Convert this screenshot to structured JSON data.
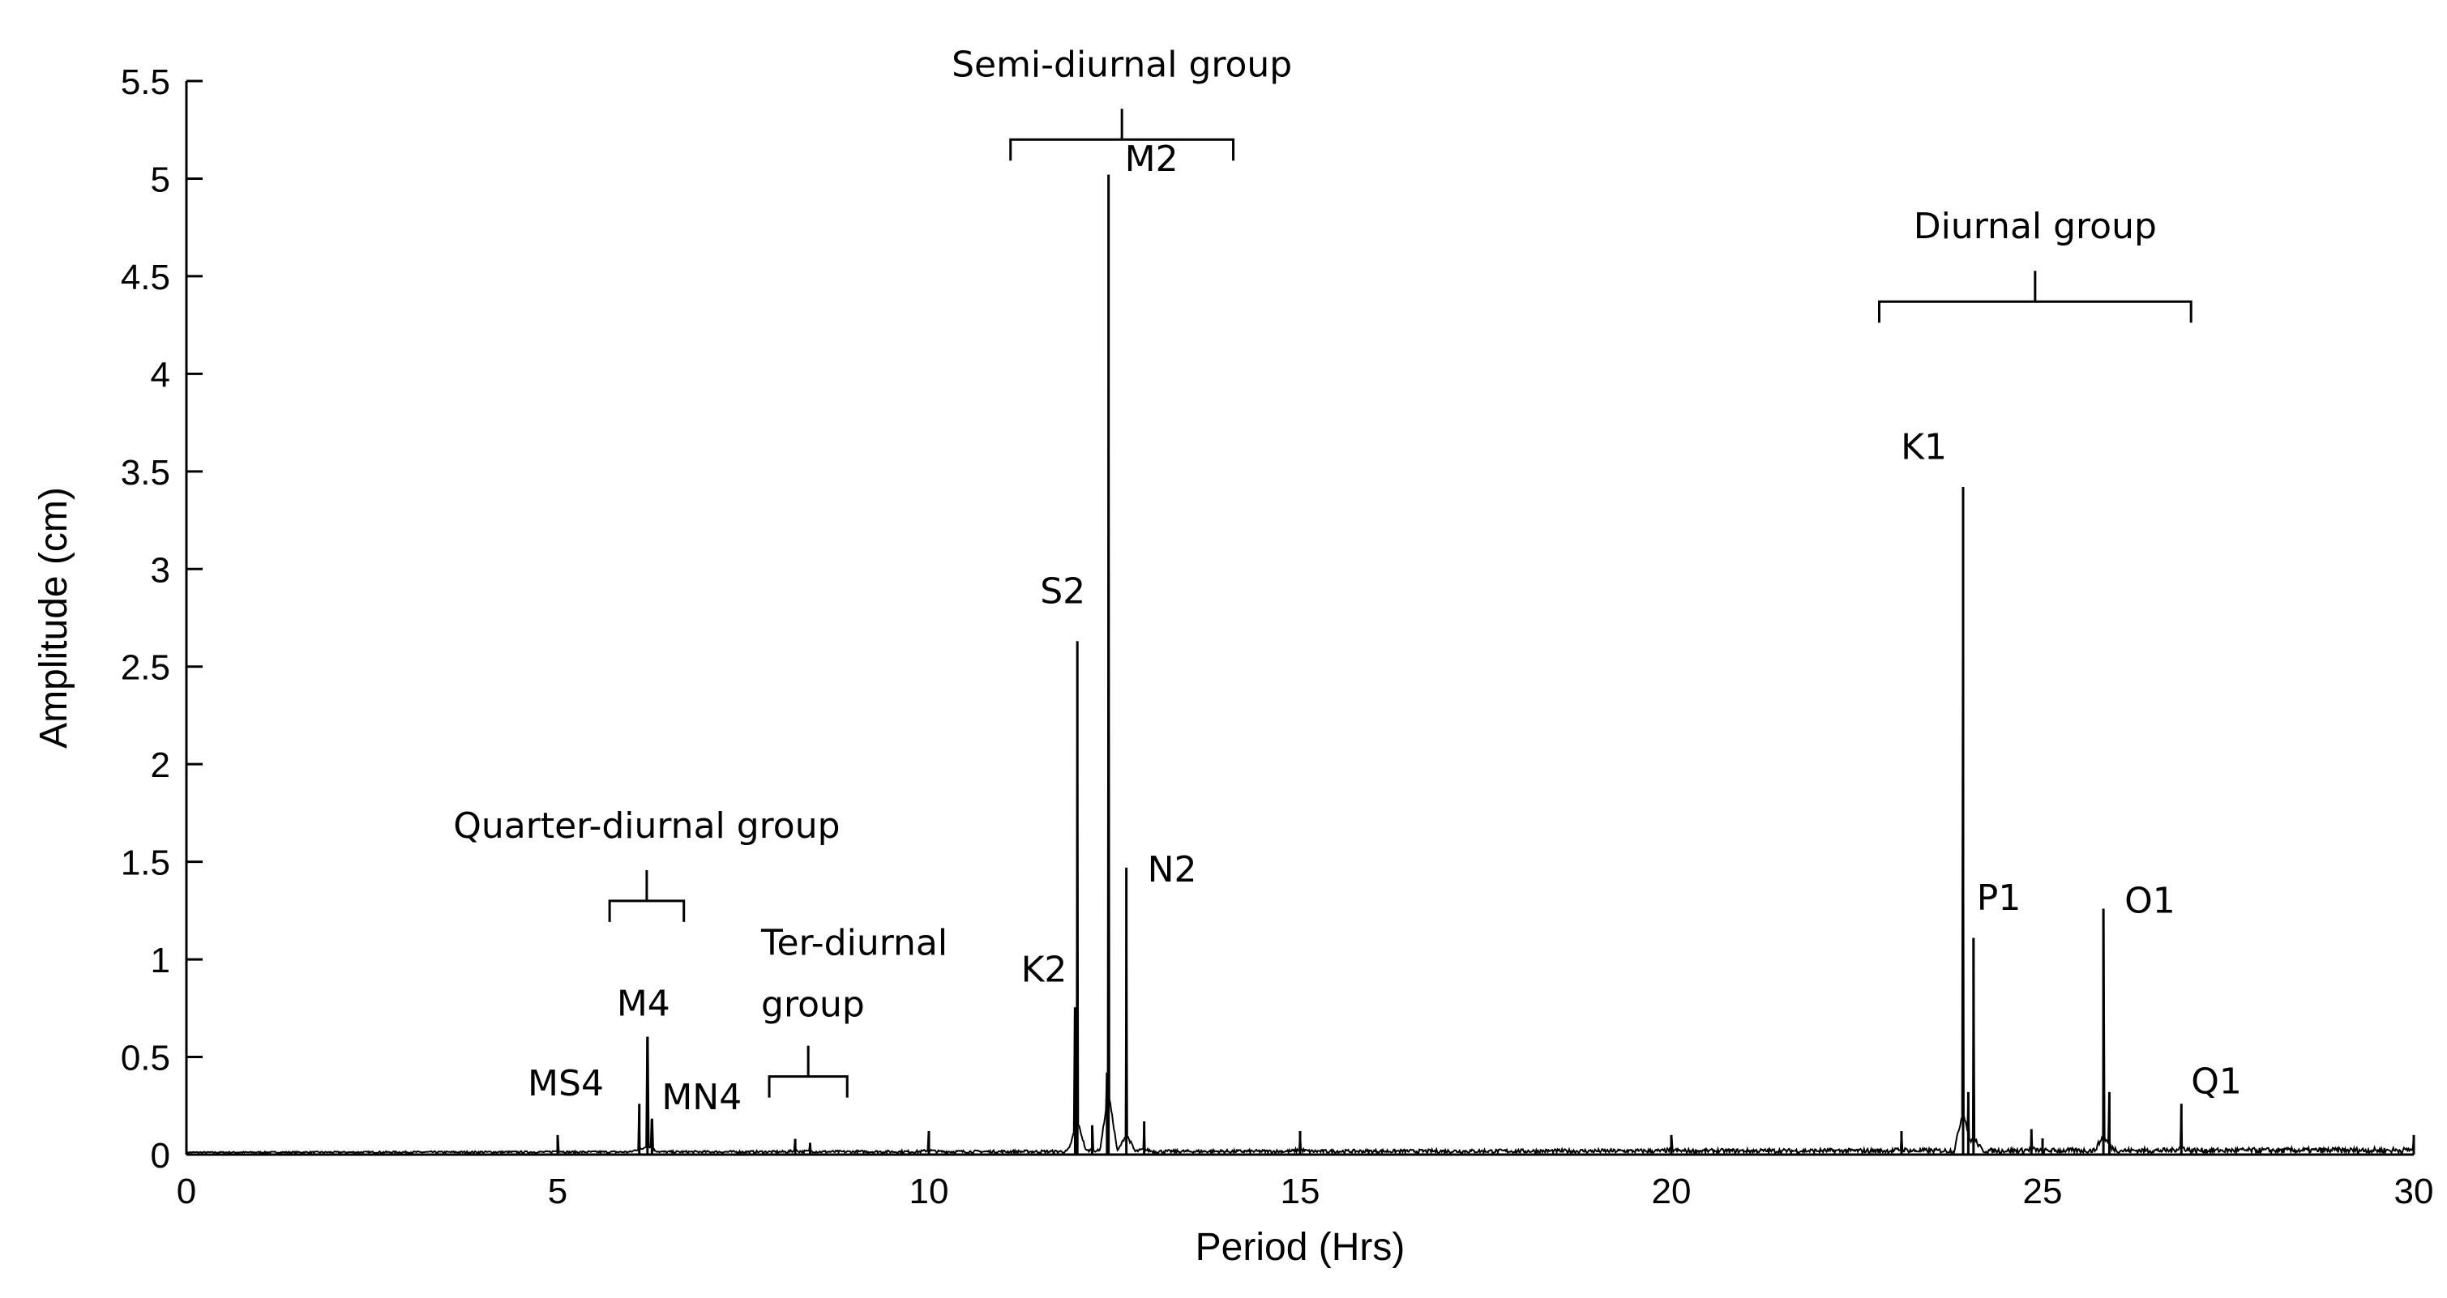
{
  "chart_data": {
    "type": "line",
    "xlabel": "Period (Hrs)",
    "ylabel": "Amplitude (cm)",
    "xlim": [
      0,
      30
    ],
    "ylim": [
      0,
      5.5
    ],
    "xticks": [
      0,
      5,
      10,
      15,
      20,
      25,
      30
    ],
    "xtick_labels": [
      "0",
      "5",
      "10",
      "15",
      "20",
      "25",
      "30"
    ],
    "yticks": [
      0,
      0.5,
      1,
      1.5,
      2,
      2.5,
      3,
      3.5,
      4,
      4.5,
      5,
      5.5
    ],
    "ytick_labels": [
      "0",
      "0.5",
      "1",
      "1.5",
      "2",
      "2.5",
      "3",
      "3.5",
      "4",
      "4.5",
      "5",
      "5.5"
    ],
    "grid": false,
    "series": [
      {
        "color": "#000000",
        "peaks": [
          {
            "x": 5.0,
            "y": 0.1
          },
          {
            "x": 6.1,
            "y": 0.26
          },
          {
            "x": 6.21,
            "y": 0.6
          },
          {
            "x": 6.27,
            "y": 0.18
          },
          {
            "x": 8.2,
            "y": 0.08
          },
          {
            "x": 8.4,
            "y": 0.06
          },
          {
            "x": 10.0,
            "y": 0.12
          },
          {
            "x": 11.97,
            "y": 0.75
          },
          {
            "x": 12.0,
            "y": 2.63
          },
          {
            "x": 12.2,
            "y": 0.15
          },
          {
            "x": 12.4,
            "y": 0.42
          },
          {
            "x": 12.42,
            "y": 5.02
          },
          {
            "x": 12.66,
            "y": 1.47
          },
          {
            "x": 12.9,
            "y": 0.17
          },
          {
            "x": 15.0,
            "y": 0.12
          },
          {
            "x": 20.0,
            "y": 0.1
          },
          {
            "x": 23.1,
            "y": 0.12
          },
          {
            "x": 23.93,
            "y": 3.42
          },
          {
            "x": 24.0,
            "y": 0.32
          },
          {
            "x": 24.07,
            "y": 1.11
          },
          {
            "x": 24.85,
            "y": 0.13
          },
          {
            "x": 25.82,
            "y": 1.26
          },
          {
            "x": 25.9,
            "y": 0.32
          },
          {
            "x": 26.87,
            "y": 0.26
          },
          {
            "x": 30.0,
            "y": 0.1
          }
        ]
      }
    ],
    "annotations": [
      {
        "text": "MS4",
        "x": 5.84,
        "y": 0.22
      },
      {
        "text": "M4",
        "x": 6.21,
        "y": 0.62
      },
      {
        "text": "MN4",
        "x": 6.27,
        "y": 0.2
      },
      {
        "text": "K2",
        "x": 11.97,
        "y": 0.77
      },
      {
        "text": "S2",
        "x": 12.0,
        "y": 2.65
      },
      {
        "text": "M2",
        "x": 12.42,
        "y": 5.04
      },
      {
        "text": "N2",
        "x": 12.66,
        "y": 1.49
      },
      {
        "text": "K1",
        "x": 23.93,
        "y": 3.44
      },
      {
        "text": "P1",
        "x": 24.07,
        "y": 1.13
      },
      {
        "text": "O1",
        "x": 25.82,
        "y": 1.28
      },
      {
        "text": "Q1",
        "x": 26.87,
        "y": 0.28
      }
    ],
    "groups": [
      {
        "label": "Quarter-diurnal group",
        "x_start": 5.7,
        "x_end": 6.7,
        "y": 1.3
      },
      {
        "label": "Ter-diurnal group",
        "label_lines": [
          "Ter-diurnal",
          "group"
        ],
        "x_start": 7.85,
        "x_end": 8.9,
        "y": 0.4
      },
      {
        "label": "Semi-diurnal group",
        "x_start": 11.1,
        "x_end": 14.1,
        "y": 5.2
      },
      {
        "label": "Diurnal group",
        "x_start": 22.8,
        "x_end": 27.0,
        "y": 4.37
      }
    ]
  }
}
